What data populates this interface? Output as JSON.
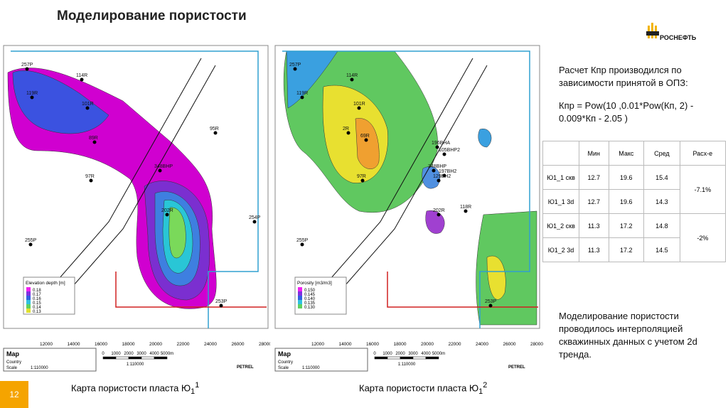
{
  "header": {
    "title": "Моделирование пористости",
    "logo": "РОСНЕФТЬ"
  },
  "text1": {
    "line1": "Расчет Кпр производился по зависимости принятой в ОПЗ:",
    "formula": "Кпр = Pow(10 ,0.01*Pow(Кп, 2) - 0.009*Кп - 2.05 )"
  },
  "table": {
    "header": [
      "Мин",
      "Макс",
      "Сред",
      "Расх-е"
    ],
    "rows": [
      [
        "Ю1_1 скв",
        "12.7",
        "19.6",
        "15.4"
      ],
      [
        "Ю1_1 3d",
        "12.7",
        "19.6",
        "14.3"
      ],
      [
        "Ю1_2 скв",
        "11.3",
        "17.2",
        "14.8"
      ],
      [
        "Ю1_2 3d",
        "11.3",
        "17.2",
        "14.5"
      ]
    ],
    "diff": [
      "-7.1%",
      "-2%"
    ]
  },
  "text2": "Моделирование пористости проводилось интерполяцией скважинных данных с учетом 2d тренда.",
  "page_number": "12",
  "maps": [
    {
      "caption": {
        "text": "Карта пористости пласта Ю",
        "sub": "1",
        "sup": "1"
      },
      "legend_title": "Elevation depth [m]",
      "legend": [
        "0.18",
        "0.17",
        "0.16",
        "0.15",
        "0.14",
        "0.13"
      ],
      "wells": [
        "257P",
        "114R",
        "119R",
        "101R",
        "89R",
        "95R",
        "97R",
        "348BHP",
        "202R",
        "254P",
        "255P",
        "253P"
      ],
      "xticks": [
        "12000",
        "14000",
        "16000",
        "18000",
        "20000",
        "22000",
        "24000",
        "26000",
        "28000"
      ],
      "scale": [
        "0",
        "1000",
        "2000",
        "3000",
        "4000",
        "5000m"
      ],
      "scale_ratio": "1:110000",
      "box": {
        "title": "Map",
        "country": "Country",
        "scale": "Scale",
        "ratio": "1:110000"
      },
      "brand": "PETREL"
    },
    {
      "caption": {
        "text": "Карта пористости пласта Ю",
        "sub": "1",
        "sup": "2"
      },
      "legend_title": "Porosity [m3/m3]",
      "legend": [
        "0.150",
        "0.145",
        "0.140",
        "0.135",
        "0.130"
      ],
      "wells": [
        "257P",
        "114R",
        "119R",
        "101R",
        "2R",
        "69R",
        "97R",
        "196BHA",
        "105BHP2",
        "348BHP",
        "197BH2",
        "129BH2",
        "202R",
        "118R",
        "255P",
        "253P"
      ],
      "xticks": [
        "12000",
        "14000",
        "16000",
        "18000",
        "20000",
        "22000",
        "24000",
        "26000",
        "28000"
      ],
      "scale": [
        "0",
        "1000",
        "2000",
        "3000",
        "4000",
        "5000m"
      ],
      "scale_ratio": "1:110000",
      "box": {
        "title": "Map",
        "country": "Country",
        "scale": "Scale",
        "ratio": "1:110000"
      },
      "brand": "PETREL"
    }
  ]
}
